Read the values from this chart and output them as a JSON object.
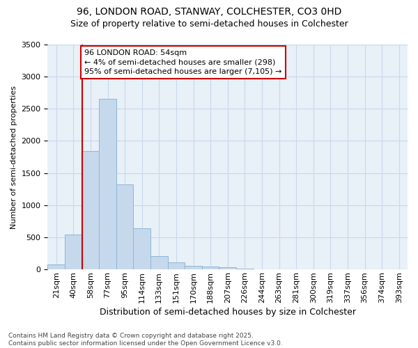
{
  "title1": "96, LONDON ROAD, STANWAY, COLCHESTER, CO3 0HD",
  "title2": "Size of property relative to semi-detached houses in Colchester",
  "xlabel": "Distribution of semi-detached houses by size in Colchester",
  "ylabel": "Number of semi-detached properties",
  "footer1": "Contains HM Land Registry data © Crown copyright and database right 2025.",
  "footer2": "Contains public sector information licensed under the Open Government Licence v3.0.",
  "categories": [
    "21sqm",
    "40sqm",
    "58sqm",
    "77sqm",
    "95sqm",
    "114sqm",
    "133sqm",
    "151sqm",
    "170sqm",
    "188sqm",
    "207sqm",
    "226sqm",
    "244sqm",
    "263sqm",
    "281sqm",
    "300sqm",
    "319sqm",
    "337sqm",
    "356sqm",
    "374sqm",
    "393sqm"
  ],
  "values": [
    75,
    540,
    1840,
    2650,
    1320,
    640,
    210,
    110,
    60,
    40,
    30,
    15,
    6,
    3,
    1,
    0,
    0,
    0,
    0,
    0,
    0
  ],
  "bar_color": "#c6d9ec",
  "bar_edge_color": "#8fb4d4",
  "vline_color": "#cc0000",
  "vline_bar_index": 2,
  "annotation_text": "96 LONDON ROAD: 54sqm\n← 4% of semi-detached houses are smaller (298)\n95% of semi-detached houses are larger (7,105) →",
  "annotation_box_edge_color": "#cc0000",
  "annotation_box_face_color": "#ffffff",
  "ylim": [
    0,
    3500
  ],
  "yticks": [
    0,
    500,
    1000,
    1500,
    2000,
    2500,
    3000,
    3500
  ],
  "grid_color": "#c8d8ec",
  "bg_color": "#e8f0f8",
  "title_fontsize": 10,
  "subtitle_fontsize": 9,
  "ylabel_fontsize": 8,
  "xlabel_fontsize": 9,
  "tick_fontsize": 8,
  "ann_fontsize": 8,
  "footer_fontsize": 6.5
}
